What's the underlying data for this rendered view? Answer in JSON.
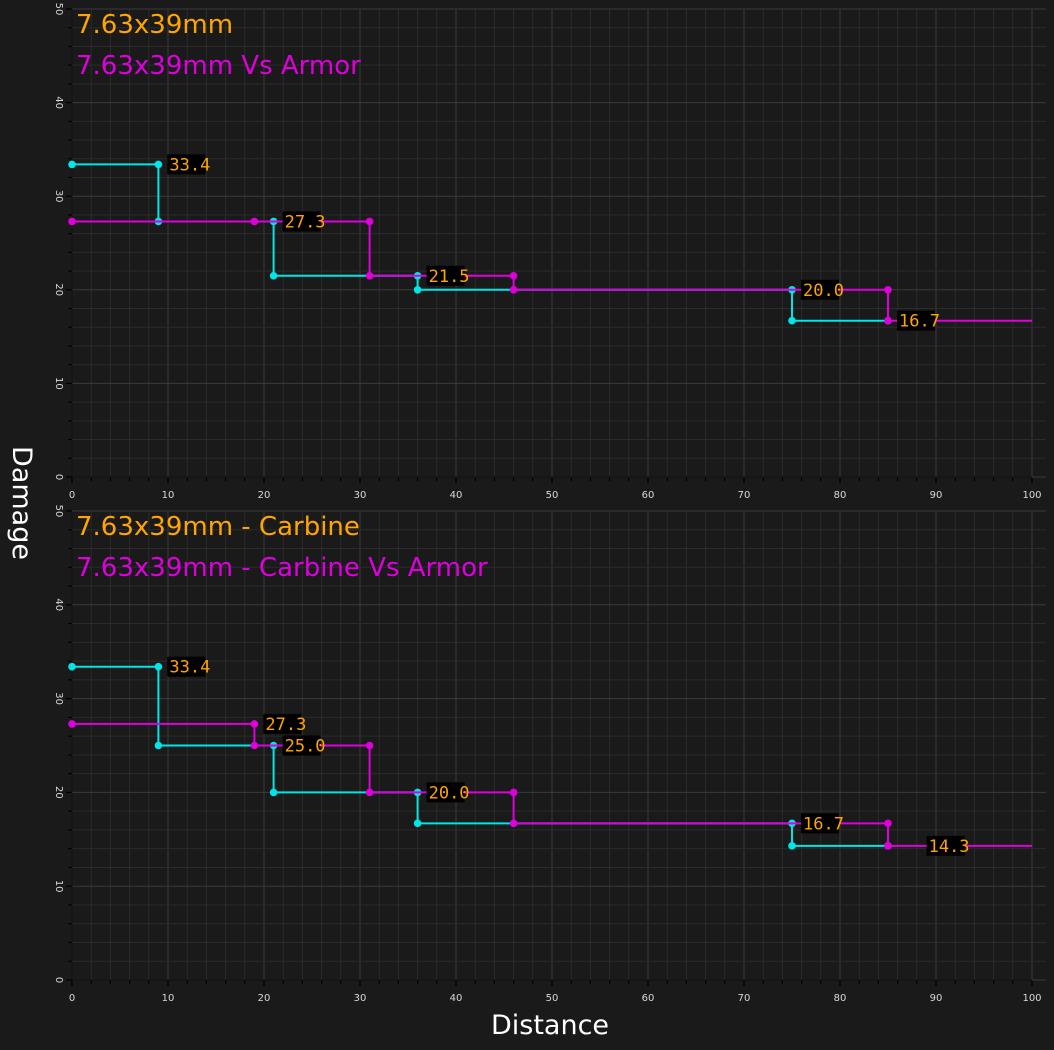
{
  "xlabel": "Distance",
  "ylabel": "Damage",
  "colors": {
    "background": "#1a1a1a",
    "grid": "#333333",
    "series1": "#00e5e5",
    "series2": "#dd00dd",
    "label": "#ffa500",
    "title1": "#ffa500",
    "title2": "#dd00dd"
  },
  "chart_data": [
    {
      "type": "line",
      "step": true,
      "xlim": [
        0,
        100
      ],
      "ylim": [
        0,
        50
      ],
      "xticks": [
        "0",
        "10",
        "20",
        "30",
        "40",
        "50",
        "60",
        "70",
        "80",
        "90",
        "100"
      ],
      "yticks": [
        "0",
        "10",
        "20",
        "30",
        "40",
        "50"
      ],
      "grid": true,
      "legend": "top-left",
      "series": [
        {
          "name": "7.63x39mm",
          "points": [
            [
              0,
              33.4
            ],
            [
              9,
              33.4
            ],
            [
              9,
              27.3
            ],
            [
              21,
              27.3
            ],
            [
              21,
              21.5
            ],
            [
              36,
              21.5
            ],
            [
              36,
              20.0
            ],
            [
              75,
              20.0
            ],
            [
              75,
              16.7
            ],
            [
              85,
              16.7
            ]
          ]
        },
        {
          "name": "7.63x39mm Vs Armor",
          "points": [
            [
              0,
              27.3
            ],
            [
              19,
              27.3
            ],
            [
              31,
              27.3
            ],
            [
              31,
              21.5
            ],
            [
              46,
              21.5
            ],
            [
              46,
              20.0
            ],
            [
              85,
              20.0
            ],
            [
              85,
              16.7
            ],
            [
              100,
              16.7
            ]
          ]
        }
      ],
      "labels": [
        {
          "x": 9,
          "y": 33.4,
          "text": "33.4"
        },
        {
          "x": 21,
          "y": 27.3,
          "text": "27.3"
        },
        {
          "x": 36,
          "y": 21.5,
          "text": "21.5"
        },
        {
          "x": 75,
          "y": 20.0,
          "text": "20.0"
        },
        {
          "x": 85,
          "y": 16.7,
          "text": "16.7"
        }
      ]
    },
    {
      "type": "line",
      "step": true,
      "xlim": [
        0,
        100
      ],
      "ylim": [
        0,
        50
      ],
      "xticks": [
        "0",
        "10",
        "20",
        "30",
        "40",
        "50",
        "60",
        "70",
        "80",
        "90",
        "100"
      ],
      "yticks": [
        "0",
        "10",
        "20",
        "30",
        "40",
        "50"
      ],
      "grid": true,
      "legend": "top-left",
      "series": [
        {
          "name": "7.63x39mm - Carbine",
          "points": [
            [
              0,
              33.4
            ],
            [
              9,
              33.4
            ],
            [
              9,
              25.0
            ],
            [
              21,
              25.0
            ],
            [
              21,
              20.0
            ],
            [
              36,
              20.0
            ],
            [
              36,
              16.7
            ],
            [
              75,
              16.7
            ],
            [
              75,
              14.3
            ],
            [
              85,
              14.3
            ]
          ]
        },
        {
          "name": "7.63x39mm - Carbine Vs Armor",
          "points": [
            [
              0,
              27.3
            ],
            [
              19,
              27.3
            ],
            [
              19,
              25.0
            ],
            [
              31,
              25.0
            ],
            [
              31,
              20.0
            ],
            [
              46,
              20.0
            ],
            [
              46,
              16.7
            ],
            [
              85,
              16.7
            ],
            [
              85,
              14.3
            ],
            [
              100,
              14.3
            ]
          ]
        }
      ],
      "labels": [
        {
          "x": 9,
          "y": 33.4,
          "text": "33.4"
        },
        {
          "x": 19,
          "y": 27.3,
          "text": "27.3"
        },
        {
          "x": 21,
          "y": 25.0,
          "text": "25.0"
        },
        {
          "x": 36,
          "y": 20.0,
          "text": "20.0"
        },
        {
          "x": 75,
          "y": 16.7,
          "text": "16.7"
        },
        {
          "x": 91,
          "y": 14.3,
          "text": "14.3",
          "centered": true
        }
      ]
    }
  ]
}
